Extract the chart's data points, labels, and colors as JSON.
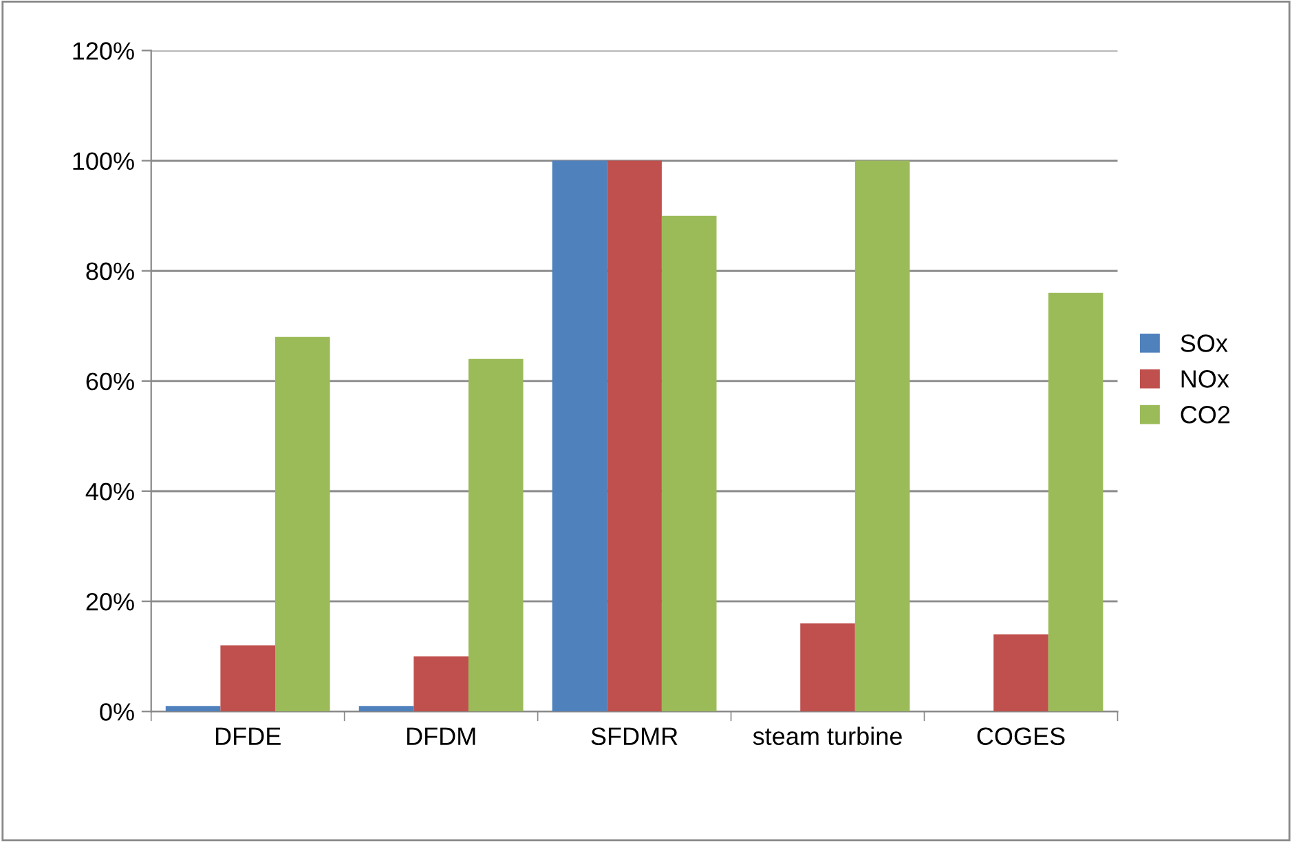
{
  "chart_data": {
    "type": "bar",
    "categories": [
      "DFDE",
      "DFDM",
      "SFDMR",
      "steam turbine",
      "COGES"
    ],
    "series": [
      {
        "name": "SOx",
        "color": "#4f81bd",
        "values": [
          1,
          1,
          100,
          0,
          0
        ]
      },
      {
        "name": "NOx",
        "color": "#c0504d",
        "values": [
          12,
          10,
          100,
          16,
          14
        ]
      },
      {
        "name": "CO2",
        "color": "#9bbb59",
        "values": [
          68,
          64,
          90,
          100,
          76
        ]
      }
    ],
    "ylim": [
      0,
      120
    ],
    "yticks": [
      {
        "value": 0,
        "label": "0%"
      },
      {
        "value": 20,
        "label": "20%"
      },
      {
        "value": 40,
        "label": "40%"
      },
      {
        "value": 60,
        "label": "60%"
      },
      {
        "value": 80,
        "label": "80%"
      },
      {
        "value": 100,
        "label": "100%"
      },
      {
        "value": 120,
        "label": "120%"
      }
    ],
    "grid": "y",
    "legend": "right"
  }
}
